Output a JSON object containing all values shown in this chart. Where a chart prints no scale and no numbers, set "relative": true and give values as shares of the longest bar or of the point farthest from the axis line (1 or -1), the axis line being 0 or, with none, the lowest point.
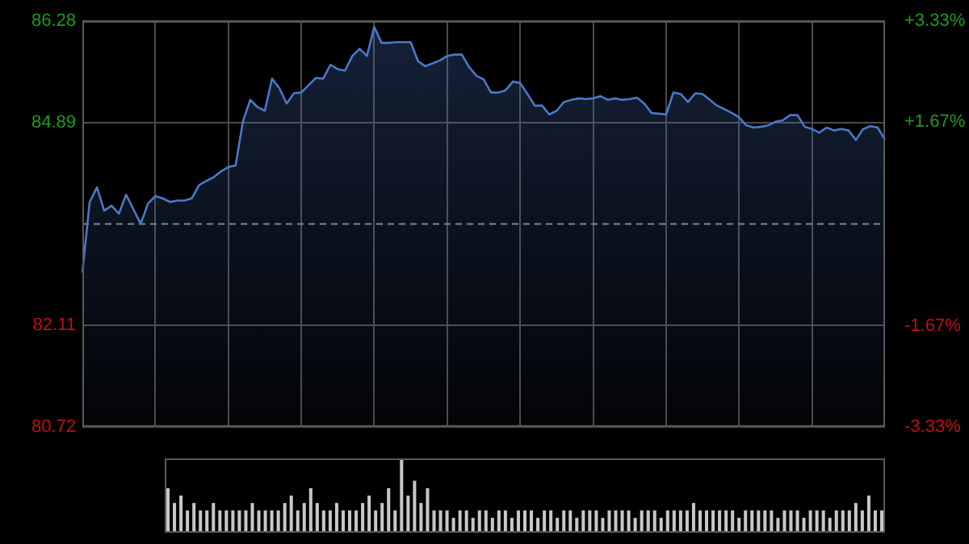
{
  "chart_data": [
    {
      "type": "area",
      "categories": [
        null,
        null,
        null,
        null,
        null,
        null,
        null,
        null,
        null,
        null,
        null,
        null,
        null,
        null,
        null,
        null,
        null,
        null,
        null,
        null,
        null,
        null,
        null,
        null,
        null,
        null,
        null,
        null,
        null,
        null,
        null,
        null,
        null,
        null,
        null,
        null,
        null,
        null,
        null,
        null,
        null,
        null,
        null,
        null,
        null,
        null,
        null,
        null,
        null,
        null,
        null,
        null,
        null,
        null,
        null,
        null,
        null,
        null,
        null,
        null,
        null,
        null,
        null,
        null,
        null,
        null,
        null,
        null,
        null,
        null,
        null,
        null,
        null,
        null,
        null,
        null,
        null,
        null,
        null,
        null,
        null,
        null,
        null,
        null,
        null,
        null,
        null,
        null,
        null,
        null,
        null,
        null,
        null,
        null,
        null,
        null,
        null,
        null,
        null,
        null,
        null,
        null,
        null,
        null,
        null,
        null,
        null,
        null,
        null,
        null,
        null
      ],
      "series": [
        {
          "color": "#4a78c8",
          "values": [
            82.83,
            83.8,
            84.0,
            83.68,
            83.75,
            83.64,
            83.9,
            83.7,
            83.5,
            83.78,
            83.88,
            83.85,
            83.8,
            83.82,
            83.82,
            83.85,
            84.03,
            84.09,
            84.14,
            84.22,
            84.28,
            84.3,
            84.9,
            85.2,
            85.1,
            85.05,
            85.49,
            85.36,
            85.15,
            85.29,
            85.3,
            85.4,
            85.5,
            85.49,
            85.68,
            85.62,
            85.6,
            85.8,
            85.9,
            85.8,
            86.2,
            85.98,
            85.98,
            85.99,
            85.99,
            85.99,
            85.73,
            85.66,
            85.7,
            85.74,
            85.8,
            85.82,
            85.82,
            85.65,
            85.53,
            85.48,
            85.3,
            85.3,
            85.33,
            85.45,
            85.43,
            85.28,
            85.12,
            85.12,
            85.0,
            85.05,
            85.17,
            85.2,
            85.22,
            85.21,
            85.22,
            85.25,
            85.2,
            85.22,
            85.2,
            85.21,
            85.23,
            85.15,
            85.02,
            85.01,
            85.0,
            85.3,
            85.28,
            85.17,
            85.29,
            85.28,
            85.2,
            85.12,
            85.07,
            85.02,
            84.96,
            84.85,
            84.82,
            84.83,
            84.85,
            84.9,
            84.92,
            84.99,
            84.99,
            84.83,
            84.8,
            84.75,
            84.82,
            84.78,
            84.8,
            84.78,
            84.65,
            84.8,
            84.84,
            84.82,
            84.65
          ]
        }
      ],
      "ylim": [
        80.72,
        86.28
      ],
      "yticks": [
        80.72,
        82.11,
        84.89,
        86.28
      ],
      "y2lim": [
        -3.33,
        3.33
      ],
      "y2ticks": [
        {
          "value": -3.33,
          "label": "-3.33%"
        },
        {
          "value": -1.67,
          "label": "-1.67%"
        },
        {
          "value": 1.67,
          "label": "+1.67%"
        },
        {
          "value": 3.33,
          "label": "+3.33%"
        }
      ],
      "ref_lines": [
        {
          "axis": "y",
          "value": 83.5,
          "color": "#8a8a8a",
          "line_style": "dashed"
        }
      ],
      "grid": true,
      "legend": false
    },
    {
      "type": "bar",
      "relative": true,
      "categories": [
        null,
        null,
        null,
        null,
        null,
        null,
        null,
        null,
        null,
        null,
        null,
        null,
        null,
        null,
        null,
        null,
        null,
        null,
        null,
        null,
        null,
        null,
        null,
        null,
        null,
        null,
        null,
        null,
        null,
        null,
        null,
        null,
        null,
        null,
        null,
        null,
        null,
        null,
        null,
        null,
        null,
        null,
        null,
        null,
        null,
        null,
        null,
        null,
        null,
        null,
        null,
        null,
        null,
        null,
        null,
        null,
        null,
        null,
        null,
        null,
        null,
        null,
        null,
        null,
        null,
        null,
        null,
        null,
        null,
        null,
        null,
        null,
        null,
        null,
        null,
        null,
        null,
        null,
        null,
        null,
        null,
        null,
        null,
        null,
        null,
        null,
        null,
        null,
        null,
        null,
        null,
        null,
        null,
        null,
        null,
        null,
        null,
        null,
        null,
        null,
        null,
        null,
        null,
        null,
        null,
        null,
        null,
        null,
        null,
        null,
        null
      ],
      "series": [
        {
          "color": "#c8c8c8",
          "values": [
            0.6,
            0.4,
            0.5,
            0.3,
            0.4,
            0.3,
            0.3,
            0.4,
            0.3,
            0.3,
            0.3,
            0.3,
            0.3,
            0.4,
            0.3,
            0.3,
            0.3,
            0.3,
            0.4,
            0.5,
            0.3,
            0.4,
            0.6,
            0.4,
            0.3,
            0.3,
            0.4,
            0.3,
            0.3,
            0.3,
            0.4,
            0.5,
            0.3,
            0.4,
            0.6,
            0.3,
            1,
            0.5,
            0.7,
            0.4,
            0.6,
            0.3,
            0.3,
            0.3,
            0.2,
            0.3,
            0.3,
            0.2,
            0.3,
            0.3,
            0.2,
            0.3,
            0.3,
            0.2,
            0.3,
            0.3,
            0.3,
            0.2,
            0.3,
            0.3,
            0.2,
            0.3,
            0.3,
            0.2,
            0.3,
            0.3,
            0.3,
            0.2,
            0.3,
            0.3,
            0.3,
            0.3,
            0.2,
            0.3,
            0.3,
            0.3,
            0.2,
            0.3,
            0.3,
            0.3,
            0.3,
            0.4,
            0.3,
            0.3,
            0.3,
            0.3,
            0.3,
            0.3,
            0.2,
            0.3,
            0.3,
            0.3,
            0.3,
            0.3,
            0.2,
            0.3,
            0.3,
            0.3,
            0.2,
            0.3,
            0.3,
            0.3,
            0.2,
            0.3,
            0.3,
            0.3,
            0.4,
            0.3,
            0.5,
            0.3,
            0.3
          ]
        }
      ],
      "legend": false
    }
  ]
}
